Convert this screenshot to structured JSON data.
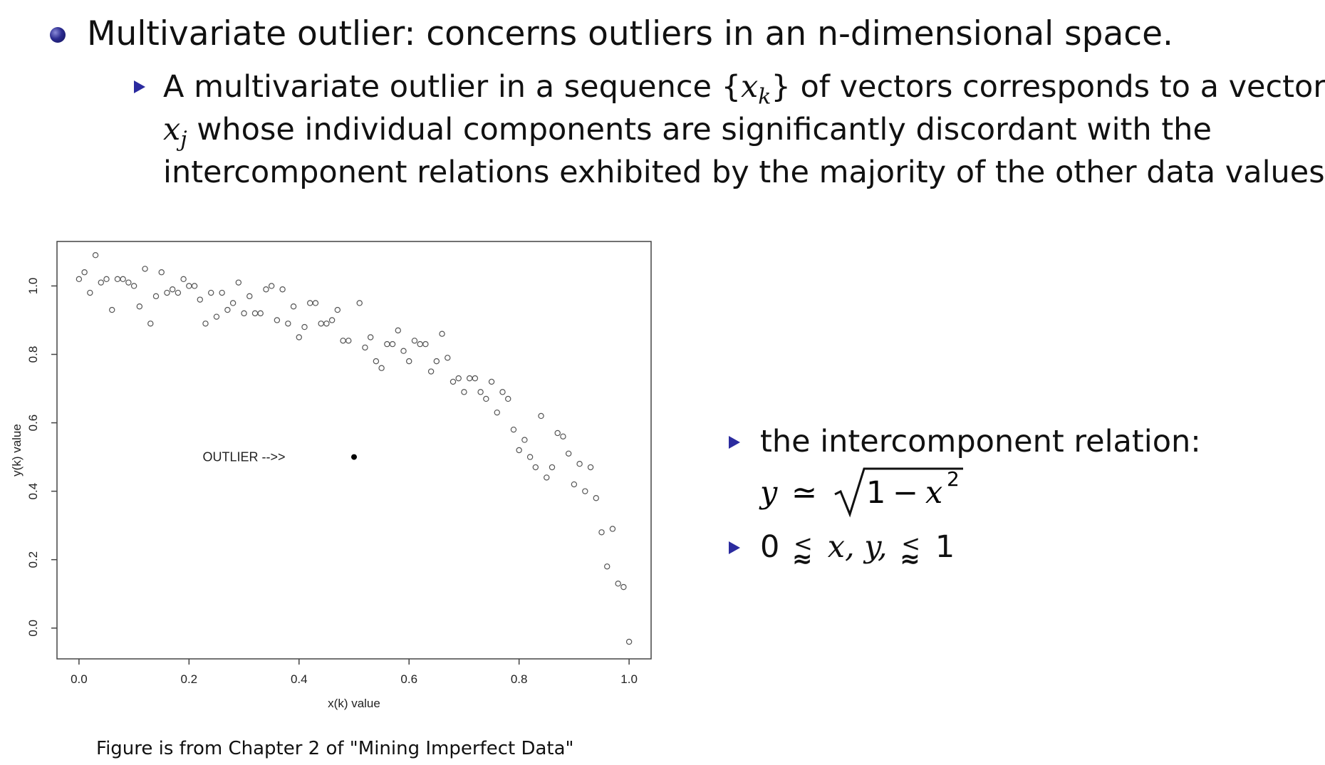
{
  "slide": {
    "main_bullet": "Multivariate outlier: concerns outliers in an n-dimensional space.",
    "sub_bullet": {
      "line1_a": "A multivariate outlier in a sequence {",
      "line1_var": "x",
      "line1_sub": "k",
      "line1_b": "} of vectors corresponds to a vector",
      "line2_var": "x",
      "line2_sub": "j",
      "line2_b": " whose individual components are significantly discordant with the",
      "line3": "intercomponent relations exhibited by the majority of the other data values."
    },
    "right_bullets": {
      "relation_label": "the intercomponent relation:",
      "formula_y": "y",
      "formula_approx": "≃",
      "formula_one": "1",
      "formula_minus": "−",
      "formula_x": "x",
      "formula_exp": "2",
      "range_zero": "0",
      "range_vars": "x, y,",
      "range_one": "1",
      "lesssim_top": "<",
      "lesssim_bottom": "≈"
    },
    "caption": "Figure is from Chapter 2 of \"Mining Imperfect Data\""
  },
  "chart_data": {
    "type": "scatter",
    "xlabel": "x(k) value",
    "ylabel": "y(k) value",
    "xlim": [
      -0.04,
      1.04
    ],
    "ylim": [
      -0.09,
      1.13
    ],
    "x_ticks": [
      0.0,
      0.2,
      0.4,
      0.6,
      0.8,
      1.0
    ],
    "x_tick_labels": [
      "0.0",
      "0.2",
      "0.4",
      "0.6",
      "0.8",
      "1.0"
    ],
    "y_ticks": [
      0.0,
      0.2,
      0.4,
      0.6,
      0.8,
      1.0
    ],
    "y_tick_labels": [
      "0.0",
      "0.2",
      "0.4",
      "0.6",
      "0.8",
      "1.0"
    ],
    "annotation": {
      "text": "OUTLIER -->>",
      "x": 0.3,
      "y": 0.5
    },
    "outlier": {
      "x": 0.5,
      "y": 0.5
    },
    "points": [
      [
        0.0,
        1.02
      ],
      [
        0.01,
        1.04
      ],
      [
        0.02,
        0.98
      ],
      [
        0.03,
        1.09
      ],
      [
        0.04,
        1.01
      ],
      [
        0.05,
        1.02
      ],
      [
        0.06,
        0.93
      ],
      [
        0.07,
        1.02
      ],
      [
        0.08,
        1.02
      ],
      [
        0.09,
        1.01
      ],
      [
        0.1,
        1.0
      ],
      [
        0.11,
        0.94
      ],
      [
        0.12,
        1.05
      ],
      [
        0.13,
        0.89
      ],
      [
        0.14,
        0.97
      ],
      [
        0.15,
        1.04
      ],
      [
        0.16,
        0.98
      ],
      [
        0.17,
        0.99
      ],
      [
        0.18,
        0.98
      ],
      [
        0.19,
        1.02
      ],
      [
        0.2,
        1.0
      ],
      [
        0.21,
        1.0
      ],
      [
        0.22,
        0.96
      ],
      [
        0.23,
        0.89
      ],
      [
        0.24,
        0.98
      ],
      [
        0.25,
        0.91
      ],
      [
        0.26,
        0.98
      ],
      [
        0.27,
        0.93
      ],
      [
        0.28,
        0.95
      ],
      [
        0.29,
        1.01
      ],
      [
        0.3,
        0.92
      ],
      [
        0.31,
        0.97
      ],
      [
        0.32,
        0.92
      ],
      [
        0.33,
        0.92
      ],
      [
        0.34,
        0.99
      ],
      [
        0.35,
        1.0
      ],
      [
        0.36,
        0.9
      ],
      [
        0.37,
        0.99
      ],
      [
        0.38,
        0.89
      ],
      [
        0.39,
        0.94
      ],
      [
        0.4,
        0.85
      ],
      [
        0.41,
        0.88
      ],
      [
        0.42,
        0.95
      ],
      [
        0.43,
        0.95
      ],
      [
        0.44,
        0.89
      ],
      [
        0.45,
        0.89
      ],
      [
        0.46,
        0.9
      ],
      [
        0.47,
        0.93
      ],
      [
        0.48,
        0.84
      ],
      [
        0.49,
        0.84
      ],
      [
        0.51,
        0.95
      ],
      [
        0.52,
        0.82
      ],
      [
        0.53,
        0.85
      ],
      [
        0.54,
        0.78
      ],
      [
        0.55,
        0.76
      ],
      [
        0.56,
        0.83
      ],
      [
        0.57,
        0.83
      ],
      [
        0.58,
        0.87
      ],
      [
        0.59,
        0.81
      ],
      [
        0.6,
        0.78
      ],
      [
        0.61,
        0.84
      ],
      [
        0.62,
        0.83
      ],
      [
        0.63,
        0.83
      ],
      [
        0.64,
        0.75
      ],
      [
        0.65,
        0.78
      ],
      [
        0.66,
        0.86
      ],
      [
        0.67,
        0.79
      ],
      [
        0.68,
        0.72
      ],
      [
        0.69,
        0.73
      ],
      [
        0.7,
        0.69
      ],
      [
        0.71,
        0.73
      ],
      [
        0.72,
        0.73
      ],
      [
        0.73,
        0.69
      ],
      [
        0.74,
        0.67
      ],
      [
        0.75,
        0.72
      ],
      [
        0.76,
        0.63
      ],
      [
        0.77,
        0.69
      ],
      [
        0.78,
        0.67
      ],
      [
        0.79,
        0.58
      ],
      [
        0.8,
        0.52
      ],
      [
        0.81,
        0.55
      ],
      [
        0.82,
        0.5
      ],
      [
        0.83,
        0.47
      ],
      [
        0.84,
        0.62
      ],
      [
        0.85,
        0.44
      ],
      [
        0.86,
        0.47
      ],
      [
        0.87,
        0.57
      ],
      [
        0.88,
        0.56
      ],
      [
        0.89,
        0.51
      ],
      [
        0.9,
        0.42
      ],
      [
        0.91,
        0.48
      ],
      [
        0.92,
        0.4
      ],
      [
        0.93,
        0.47
      ],
      [
        0.94,
        0.38
      ],
      [
        0.95,
        0.28
      ],
      [
        0.96,
        0.18
      ],
      [
        0.97,
        0.29
      ],
      [
        0.98,
        0.13
      ],
      [
        0.99,
        0.12
      ],
      [
        1.0,
        -0.04
      ]
    ]
  },
  "colors": {
    "text": "#111111",
    "bullet_blue": "#2b2b8f",
    "arrow_blue": "#2b2b9f",
    "point_stroke": "#555555",
    "outlier_fill": "#000000"
  }
}
